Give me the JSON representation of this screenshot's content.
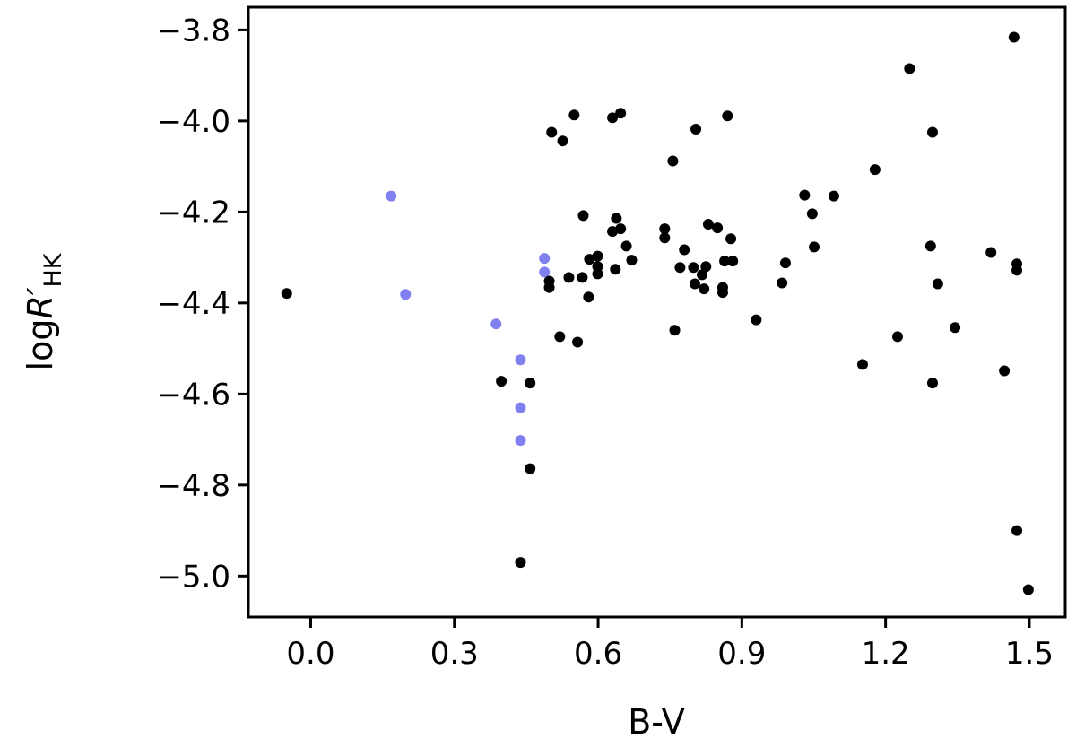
{
  "chart_data": {
    "type": "scatter",
    "xlabel": "B-V",
    "ylabel": [
      "log",
      "R′",
      "HK"
    ],
    "xlim": [
      -0.13,
      1.575
    ],
    "ylim": [
      -5.09,
      -3.75
    ],
    "xticks": [
      {
        "value": 0,
        "label": "0.0"
      },
      0.3,
      0.6,
      0.9,
      1.2,
      1.5
    ],
    "yticks": [
      {
        "value": -3.8,
        "label": "−3.8"
      },
      {
        "value": -4.0,
        "label": "−4.0"
      },
      {
        "value": -4.2,
        "label": "−4.2"
      },
      {
        "value": -4.4,
        "label": "−4.4"
      },
      {
        "value": -4.6,
        "label": "−4.6"
      },
      {
        "value": -4.8,
        "label": "−4.8"
      },
      {
        "value": -5.0,
        "label": "−5.0"
      }
    ],
    "series": [
      {
        "color": "#8080f0",
        "x": [
          0.168,
          0.198,
          0.387,
          0.488,
          0.488,
          0.438,
          0.438,
          0.438
        ],
        "values": [
          -4.165,
          -4.381,
          -4.446,
          -4.302,
          -4.332,
          -4.525,
          -4.63,
          -4.702
        ]
      },
      {
        "color": "#000000",
        "x": [
          -0.05,
          0.398,
          0.458,
          0.458,
          0.438,
          0.503,
          0.526,
          0.55,
          0.498,
          0.498,
          0.539,
          0.52,
          0.557,
          0.569,
          0.567,
          0.58,
          0.582,
          0.599,
          0.599,
          0.599,
          0.63,
          0.647,
          0.638,
          0.63,
          0.647,
          0.636,
          0.659,
          0.67,
          0.756,
          0.739,
          0.739,
          0.76,
          0.771,
          0.78,
          0.804,
          0.799,
          0.802,
          0.817,
          0.825,
          0.821,
          0.83,
          0.849,
          0.86,
          0.86,
          0.864,
          0.87,
          0.877,
          0.881,
          0.93,
          0.984,
          0.991,
          1.031,
          1.047,
          1.051,
          1.092,
          1.152,
          1.178,
          1.225,
          1.25,
          1.298,
          1.294,
          1.298,
          1.309,
          1.345,
          1.42,
          1.448,
          1.468,
          1.474,
          1.474,
          1.474,
          1.498
        ],
        "values": [
          -4.379,
          -4.572,
          -4.576,
          -4.764,
          -4.97,
          -4.025,
          -4.044,
          -3.987,
          -4.352,
          -4.366,
          -4.344,
          -4.474,
          -4.486,
          -4.208,
          -4.344,
          -4.387,
          -4.304,
          -4.297,
          -4.32,
          -4.336,
          -3.993,
          -3.983,
          -4.214,
          -4.243,
          -4.237,
          -4.326,
          -4.275,
          -4.306,
          -4.088,
          -4.237,
          -4.257,
          -4.46,
          -4.322,
          -4.283,
          -4.018,
          -4.322,
          -4.358,
          -4.338,
          -4.32,
          -4.369,
          -4.227,
          -4.235,
          -4.366,
          -4.377,
          -4.308,
          -3.989,
          -4.259,
          -4.308,
          -4.437,
          -4.356,
          -4.312,
          -4.163,
          -4.204,
          -4.277,
          -4.165,
          -4.535,
          -4.107,
          -4.474,
          -3.885,
          -4.025,
          -4.275,
          -4.576,
          -4.358,
          -4.454,
          -4.289,
          -4.549,
          -3.816,
          -4.314,
          -4.328,
          -4.9,
          -5.03
        ]
      }
    ]
  }
}
